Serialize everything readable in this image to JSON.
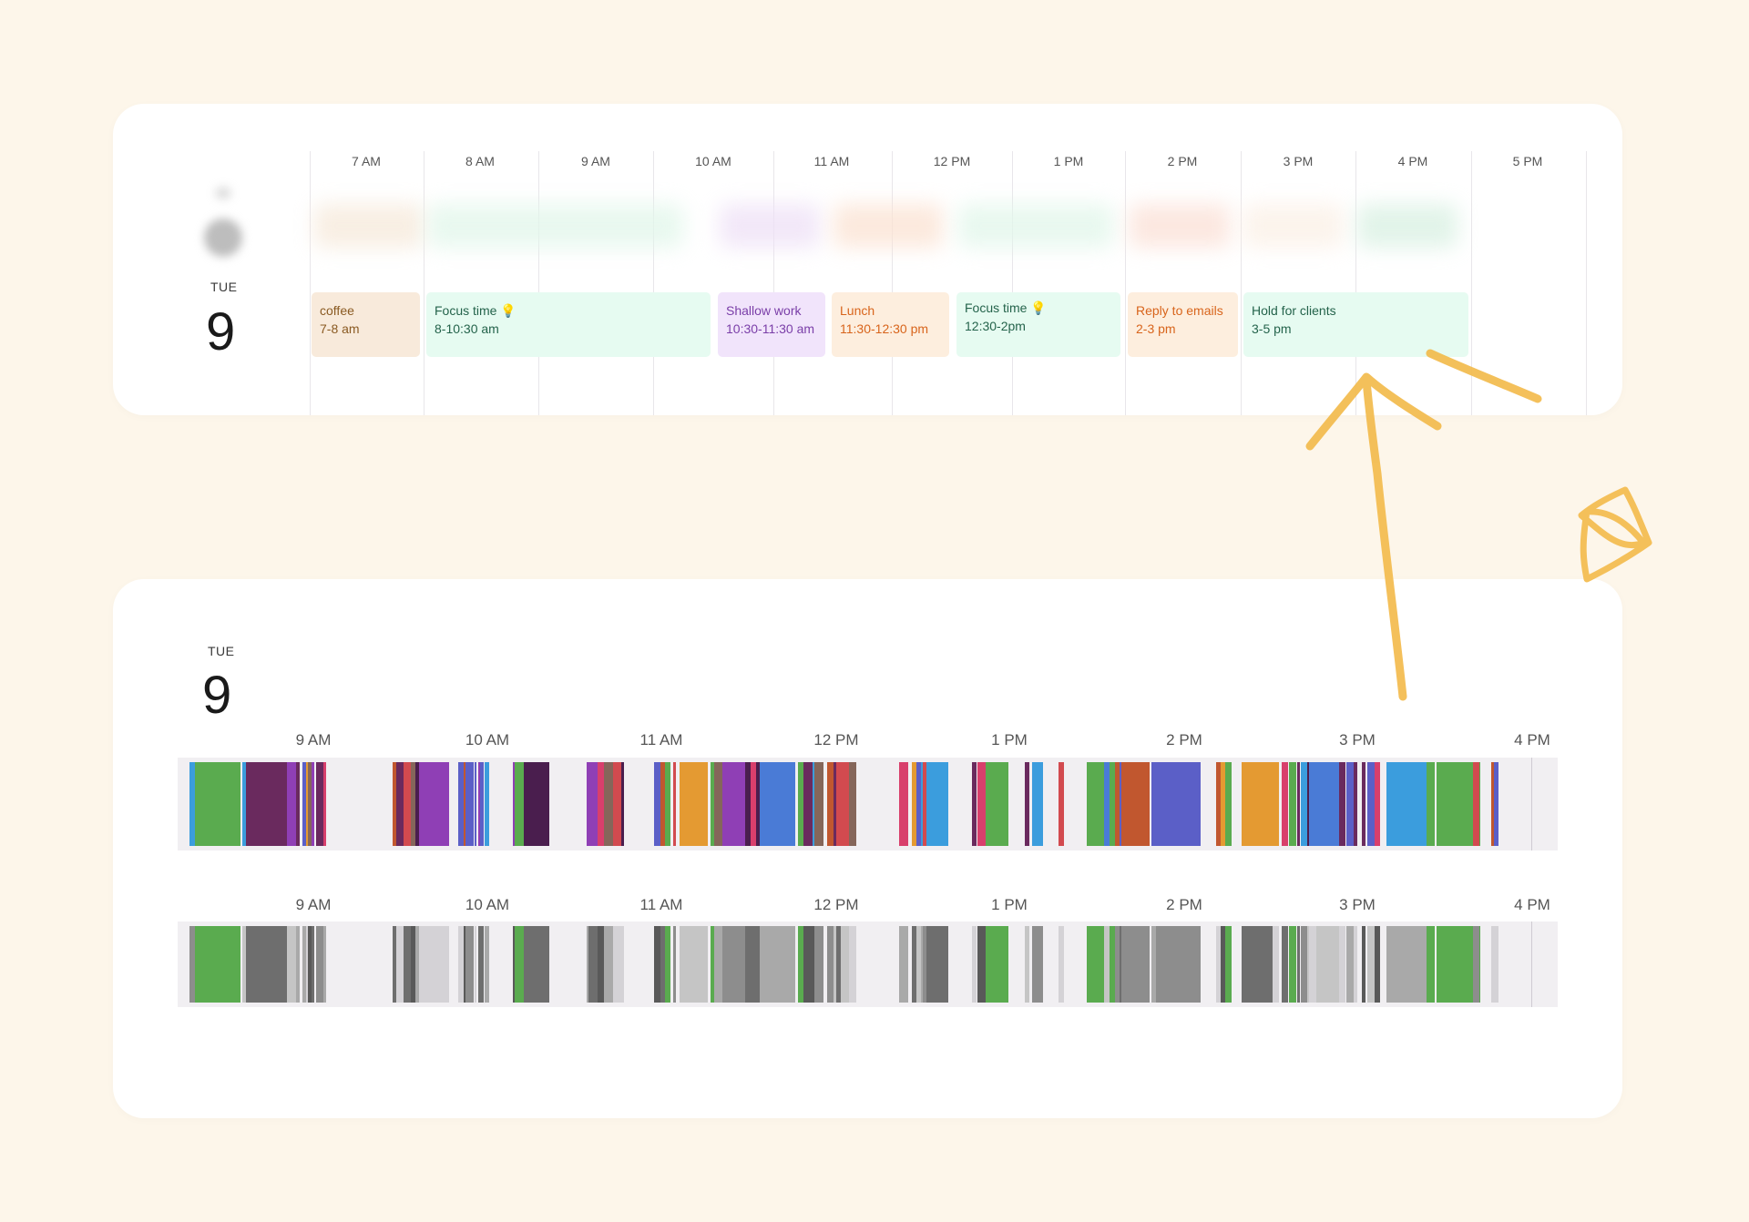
{
  "top": {
    "day_of_week": "TUE",
    "day_number": "9",
    "hours": [
      "7 AM",
      "8 AM",
      "9 AM",
      "10 AM",
      "11 AM",
      "12 PM",
      "1 PM",
      "2 PM",
      "3 PM",
      "4 PM",
      "5 PM"
    ],
    "events": [
      {
        "title": "coffee",
        "time": "7-8 am",
        "bg": "#f8eadb",
        "fg": "#8a5a22"
      },
      {
        "title": "Focus time 💡",
        "time": "8-10:30 am",
        "bg": "#e6fbf1",
        "fg": "#24634b"
      },
      {
        "title": "Shallow work",
        "time": "10:30-11:30 am",
        "bg": "#f1e4fb",
        "fg": "#7a3ea8"
      },
      {
        "title": "Lunch",
        "time": "11:30-12:30 pm",
        "bg": "#fdeede",
        "fg": "#d8641b"
      },
      {
        "title": "Focus time 💡",
        "time": "12:30-2pm",
        "bg": "#e6fbf1",
        "fg": "#24634b"
      },
      {
        "title": "Reply to  emails",
        "time": "2-3 pm",
        "bg": "#fdeede",
        "fg": "#d8641b"
      },
      {
        "title": "Hold for clients",
        "time": "3-5 pm",
        "bg": "#e6fbf1",
        "fg": "#24634b"
      }
    ]
  },
  "bottom": {
    "day_of_week": "TUE",
    "day_number": "9",
    "hours": [
      "9 AM",
      "10 AM",
      "11 AM",
      "12 PM",
      "1 PM",
      "2 PM",
      "3 PM",
      "4 PM"
    ]
  },
  "colors": {
    "page_bg": "#fdf6ea",
    "card_bg": "#ffffff",
    "strip_bg": "#f1eff2",
    "accent_scribble": "#f3bb4d",
    "activity_palette": [
      "#4a1e4e",
      "#3b9ddd",
      "#e49a32",
      "#4a7bd6",
      "#85665a",
      "#8f3fb5",
      "#d24a4f",
      "#5aab4f",
      "#c1572f",
      "#5b5fc7",
      "#d83f6c",
      "#6a2a5e"
    ]
  }
}
